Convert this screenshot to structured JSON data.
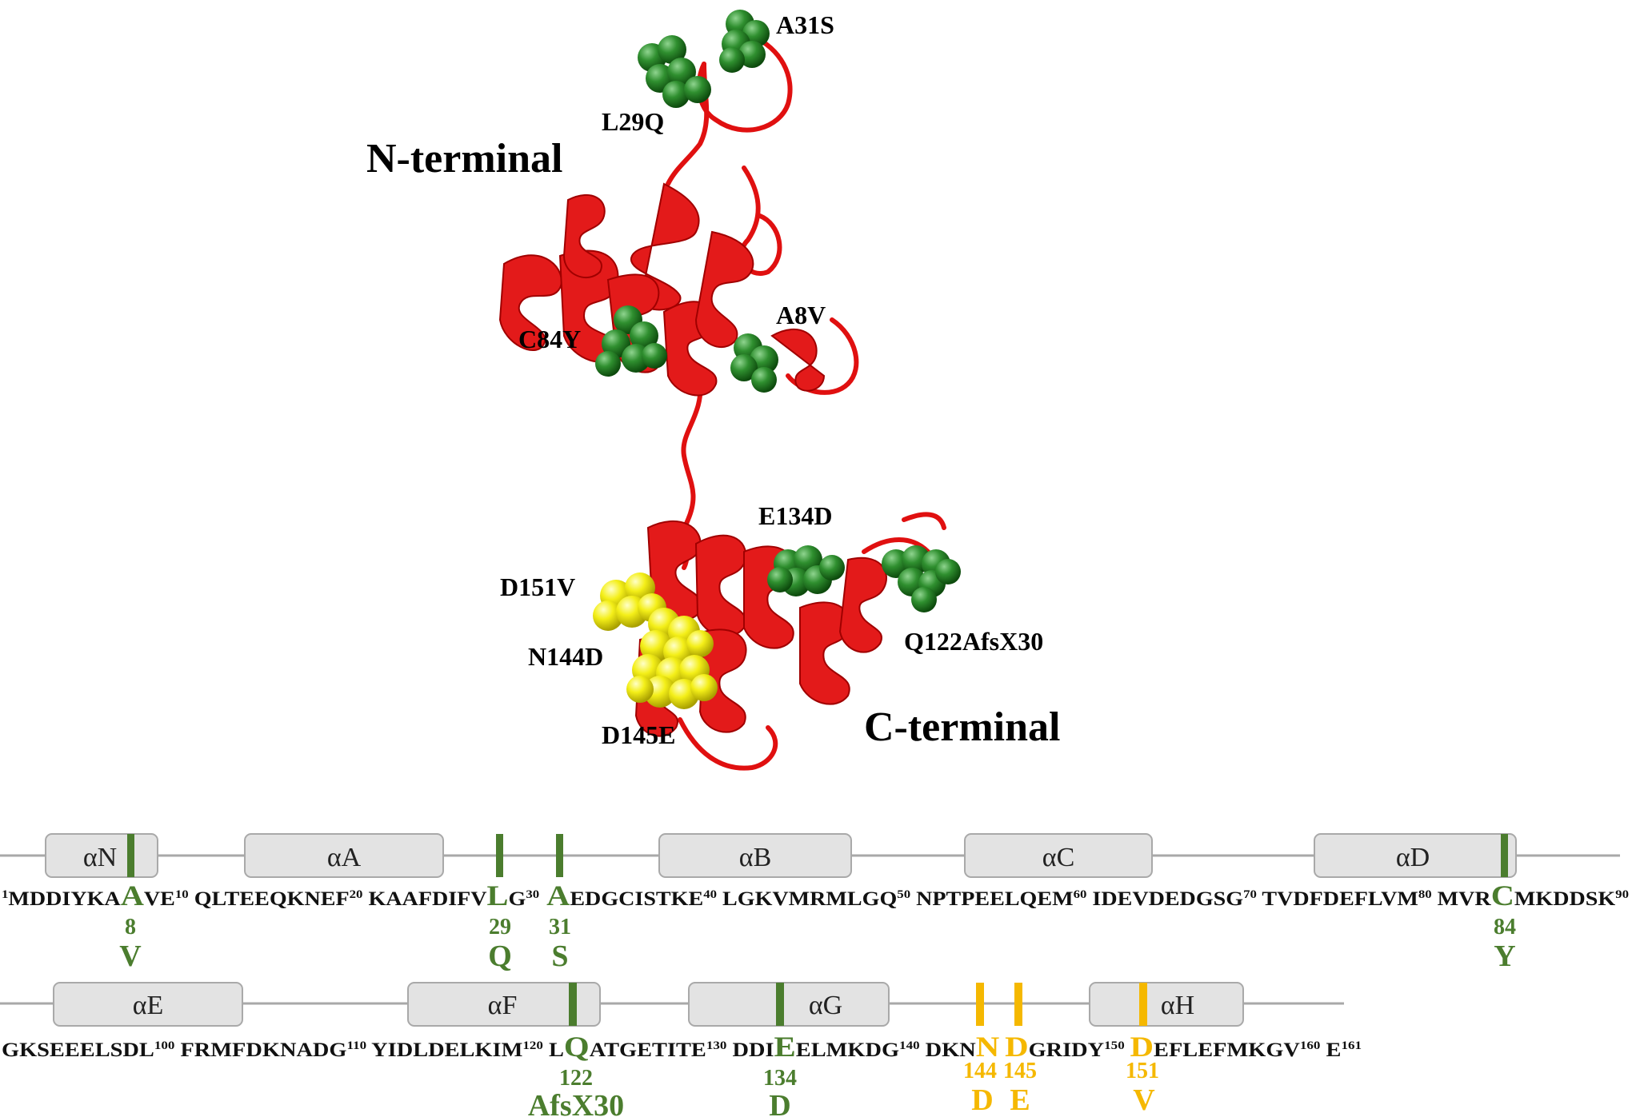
{
  "structure": {
    "n_terminal_label": "N-terminal",
    "c_terminal_label": "C-terminal",
    "mutation_labels": [
      "A31S",
      "L29Q",
      "C84Y",
      "A8V",
      "E134D",
      "D151V",
      "N144D",
      "Q122AfsX30",
      "D145E"
    ],
    "colors": {
      "ribbon": "#e01010",
      "green_mutation": "#2e8b2e",
      "yellow_mutation": "#f2ee16"
    }
  },
  "row1": {
    "helices": [
      "αN",
      "αA",
      "αB",
      "αC",
      "αD"
    ],
    "sequence": {
      "s1_sup": "1",
      "s1": "MDDIYKA",
      "m8": "A",
      "s2": "VE",
      "s2_sup": "10",
      "s3": " QLTEEQKNEF",
      "s3_sup": "20",
      "s4": " KAAFDIFV",
      "m29": "L",
      "s5": "G",
      "s5_sup": "30",
      "m31": "A",
      "s6": "EDGCISTKE",
      "s6_sup": "40",
      "s7": " LGKVMRMLGQ",
      "s7_sup": "50",
      "s8": " NPTPEELQEM",
      "s8_sup": "60",
      "s9": " IDEVDEDGSG",
      "s9_sup": "70",
      "s10": " TVDFDEFLVM",
      "s10_sup": "80",
      "s11": " MVR",
      "m84": "C",
      "s12": "MKDDSK",
      "s12_sup": "90"
    },
    "mutations": [
      {
        "pos": "8",
        "alt": "V"
      },
      {
        "pos": "29",
        "alt": "Q"
      },
      {
        "pos": "31",
        "alt": "S"
      },
      {
        "pos": "84",
        "alt": "Y"
      }
    ]
  },
  "row2": {
    "helices": [
      "αE",
      "αF",
      "αG",
      "αH"
    ],
    "sequence": {
      "s1": "GKSEEELSDL",
      "s1_sup": "100",
      "s2": " FRMFDKNADG",
      "s2_sup": "110",
      "s3": " YIDLDELKIM",
      "s3_sup": "120",
      "s4": " L",
      "m122": "Q",
      "s5": "ATGETITE",
      "s5_sup": "130",
      "s6": " DDI",
      "m134": "E",
      "s7": "ELMKDG",
      "s7_sup": "140",
      "s8": " DKN",
      "m144": "N",
      "m145": "D",
      "s9": "GRIDY",
      "s9_sup": "150",
      "m151": "D",
      "s10": "EFLEFMKGV",
      "s10_sup": "160",
      "s11": " E",
      "s11_sup": "161"
    },
    "mutations": [
      {
        "pos": "122",
        "alt": "AfsX30"
      },
      {
        "pos": "134",
        "alt": "D"
      },
      {
        "pos": "144",
        "alt": "D"
      },
      {
        "pos": "145",
        "alt": "E"
      },
      {
        "pos": "151",
        "alt": "V"
      }
    ]
  }
}
